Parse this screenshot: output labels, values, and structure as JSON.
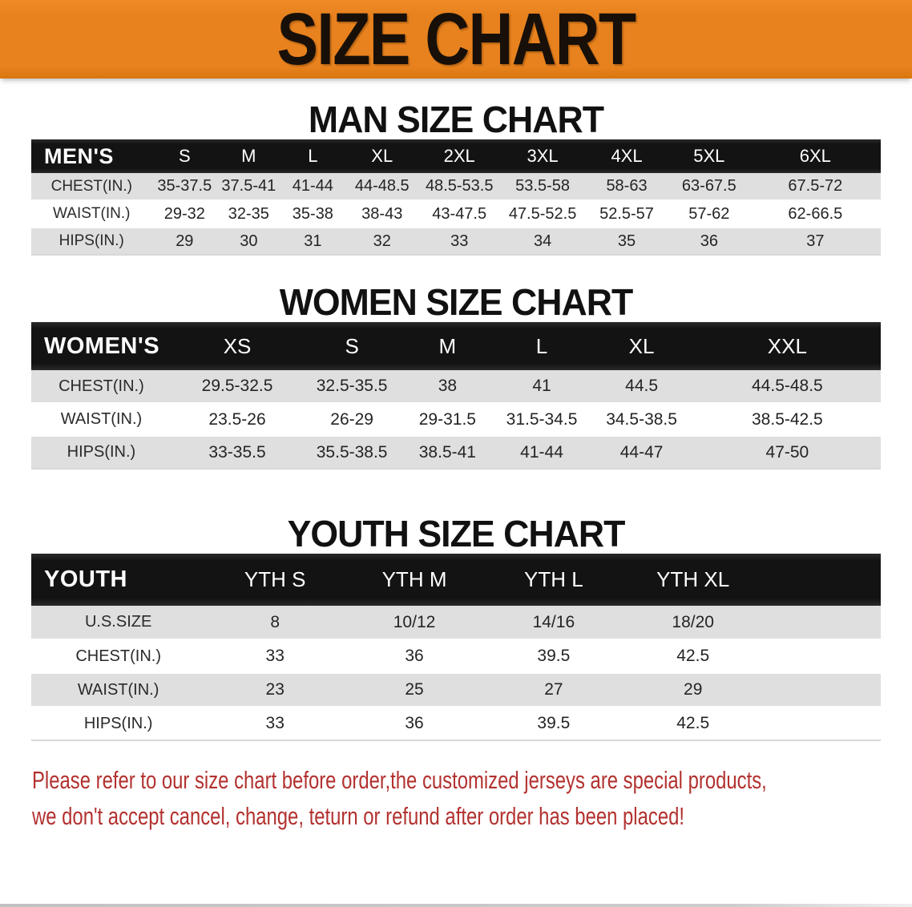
{
  "banner": {
    "title": "SIZE CHART"
  },
  "sections": [
    {
      "title": "MAN SIZE CHART",
      "group_label": "MEN'S",
      "columns": [
        "S",
        "M",
        "L",
        "XL",
        "2XL",
        "3XL",
        "4XL",
        "5XL",
        "6XL"
      ],
      "rows": [
        {
          "label": "CHEST(IN.)",
          "values": [
            "35-37.5",
            "37.5-41",
            "41-44",
            "44-48.5",
            "48.5-53.5",
            "53.5-58",
            "58-63",
            "63-67.5",
            "67.5-72"
          ]
        },
        {
          "label": "WAIST(IN.)",
          "values": [
            "29-32",
            "32-35",
            "35-38",
            "38-43",
            "43-47.5",
            "47.5-52.5",
            "52.5-57",
            "57-62",
            "62-66.5"
          ]
        },
        {
          "label": "HIPS(IN.)",
          "values": [
            "29",
            "30",
            "31",
            "32",
            "33",
            "34",
            "35",
            "36",
            "37"
          ]
        }
      ]
    },
    {
      "title": "WOMEN SIZE CHART",
      "group_label": "WOMEN'S",
      "columns": [
        "XS",
        "S",
        "M",
        "L",
        "XL",
        "XXL"
      ],
      "rows": [
        {
          "label": "CHEST(IN.)",
          "values": [
            "29.5-32.5",
            "32.5-35.5",
            "38",
            "41",
            "44.5",
            "44.5-48.5"
          ]
        },
        {
          "label": "WAIST(IN.)",
          "values": [
            "23.5-26",
            "26-29",
            "29-31.5",
            "31.5-34.5",
            "34.5-38.5",
            "38.5-42.5"
          ]
        },
        {
          "label": "HIPS(IN.)",
          "values": [
            "33-35.5",
            "35.5-38.5",
            "38.5-41",
            "41-44",
            "44-47",
            "47-50"
          ]
        }
      ]
    },
    {
      "title": "YOUTH SIZE CHART",
      "group_label": "YOUTH",
      "columns": [
        "YTH S",
        "YTH M",
        "YTH L",
        "YTH XL"
      ],
      "rows": [
        {
          "label": "U.S.SIZE",
          "values": [
            "8",
            "10/12",
            "14/16",
            "18/20"
          ]
        },
        {
          "label": "CHEST(IN.)",
          "values": [
            "33",
            "36",
            "39.5",
            "42.5"
          ]
        },
        {
          "label": "WAIST(IN.)",
          "values": [
            "23",
            "25",
            "27",
            "29"
          ]
        },
        {
          "label": "HIPS(IN.)",
          "values": [
            "33",
            "36",
            "39.5",
            "42.5"
          ]
        }
      ]
    }
  ],
  "disclaimer": {
    "lines": [
      "Please refer to our size chart before order,the customized jerseys are special products,",
      "we don't accept cancel, change, teturn or refund after order has been placed!"
    ]
  },
  "colors": {
    "banner_bg": "#e8821e",
    "table_header_bg": "#131313",
    "row_alt_bg": "#dfdfdf",
    "title_text": "#111111",
    "disclaimer_text": "#b23230"
  }
}
